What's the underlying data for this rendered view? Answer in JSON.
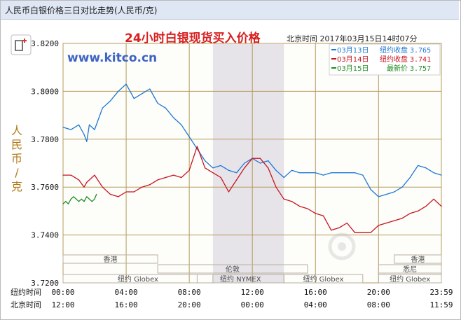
{
  "window": {
    "title": "人民币白银价格三日对比走势(人民币/克)"
  },
  "chart_data": {
    "type": "line",
    "title": "24小时白银现货买入价格",
    "subtitle": "北京时间 2017年03月15日14时07分",
    "watermark": "www.kitco.cn",
    "ylabel": "人民币/克",
    "ylim": [
      3.72,
      3.82
    ],
    "yticks": [
      "3.8200",
      "3.8000",
      "3.7800",
      "3.7600",
      "3.7400",
      "3.7200"
    ],
    "ytick_values": [
      3.82,
      3.8,
      3.78,
      3.76,
      3.74,
      3.72
    ],
    "xlim": [
      0,
      1439
    ],
    "xticks_ny_label": "纽约时间",
    "xticks_ny": [
      "00:00",
      "04:00",
      "08:00",
      "12:00",
      "16:00",
      "20:00",
      "23:59"
    ],
    "xticks_bj_label": "北京时间",
    "xticks_bj": [
      "12:00",
      "16:00",
      "20:00",
      "00:00",
      "04:00",
      "08:00",
      "11:59"
    ],
    "xtick_values": [
      0,
      240,
      480,
      720,
      960,
      1200,
      1439
    ],
    "grid": true,
    "highlight_region": [
      570,
      840
    ],
    "legend_position": "top-right",
    "sessions": [
      {
        "label": "香港",
        "row": 0,
        "start": 0,
        "end": 360
      },
      {
        "label": "香港",
        "row": 0,
        "start": 1260,
        "end": 1439
      },
      {
        "label": "伦敦",
        "row": 1,
        "start": 360,
        "end": 930
      },
      {
        "label": "悉尼",
        "row": 1,
        "start": 1200,
        "end": 1439
      },
      {
        "label": "纽约 Globex",
        "row": 2,
        "start": 0,
        "end": 570
      },
      {
        "label": "纽约 NYMEX",
        "row": 2,
        "start": 510,
        "end": 840
      },
      {
        "label": "纽约 Globex",
        "row": 2,
        "start": 840,
        "end": 1140
      },
      {
        "label": "纽约 Globex",
        "row": 2,
        "start": 1200,
        "end": 1439
      }
    ],
    "series": [
      {
        "name": "03月13日",
        "legend_label": "纽约收盘",
        "legend_value": "3.765",
        "color": "#1e78d4",
        "x": [
          0,
          30,
          60,
          80,
          90,
          100,
          120,
          150,
          180,
          210,
          240,
          270,
          300,
          330,
          360,
          390,
          420,
          450,
          480,
          510,
          540,
          570,
          600,
          630,
          660,
          690,
          720,
          750,
          780,
          810,
          840,
          870,
          900,
          930,
          960,
          990,
          1020,
          1050,
          1080,
          1110,
          1140,
          1170,
          1200,
          1230,
          1260,
          1290,
          1320,
          1350,
          1380,
          1410,
          1439
        ],
        "y": [
          3.785,
          3.784,
          3.786,
          3.782,
          3.779,
          3.786,
          3.784,
          3.793,
          3.796,
          3.8,
          3.803,
          3.797,
          3.799,
          3.801,
          3.795,
          3.793,
          3.789,
          3.786,
          3.781,
          3.776,
          3.771,
          3.768,
          3.769,
          3.767,
          3.766,
          3.77,
          3.772,
          3.77,
          3.771,
          3.767,
          3.764,
          3.767,
          3.766,
          3.766,
          3.766,
          3.765,
          3.766,
          3.766,
          3.766,
          3.766,
          3.765,
          3.759,
          3.756,
          3.757,
          3.758,
          3.76,
          3.764,
          3.769,
          3.768,
          3.766,
          3.765
        ]
      },
      {
        "name": "03月14日",
        "legend_label": "纽约收盘",
        "legend_value": "3.741",
        "color": "#c8141e",
        "x": [
          0,
          30,
          60,
          80,
          90,
          120,
          150,
          180,
          210,
          240,
          270,
          300,
          330,
          360,
          390,
          420,
          450,
          480,
          510,
          540,
          570,
          600,
          630,
          660,
          690,
          720,
          750,
          780,
          810,
          840,
          870,
          900,
          930,
          960,
          990,
          1020,
          1050,
          1080,
          1110,
          1140,
          1170,
          1200,
          1230,
          1260,
          1290,
          1320,
          1350,
          1380,
          1410,
          1439
        ],
        "y": [
          3.765,
          3.765,
          3.763,
          3.76,
          3.762,
          3.765,
          3.76,
          3.757,
          3.756,
          3.758,
          3.758,
          3.76,
          3.761,
          3.763,
          3.764,
          3.765,
          3.764,
          3.767,
          3.777,
          3.768,
          3.766,
          3.764,
          3.758,
          3.763,
          3.768,
          3.772,
          3.772,
          3.768,
          3.76,
          3.755,
          3.754,
          3.752,
          3.751,
          3.749,
          3.748,
          3.742,
          3.743,
          3.745,
          3.741,
          3.741,
          3.741,
          3.744,
          3.745,
          3.746,
          3.747,
          3.749,
          3.75,
          3.752,
          3.755,
          3.752
        ]
      },
      {
        "name": "03月15日",
        "legend_label": "最新价",
        "legend_value": "3.757",
        "color": "#1f8c1f",
        "x": [
          0,
          10,
          20,
          30,
          40,
          50,
          60,
          70,
          80,
          90,
          100,
          110,
          120,
          127
        ],
        "y": [
          3.753,
          3.754,
          3.753,
          3.755,
          3.756,
          3.755,
          3.754,
          3.755,
          3.754,
          3.756,
          3.755,
          3.754,
          3.755,
          3.757
        ]
      }
    ]
  }
}
